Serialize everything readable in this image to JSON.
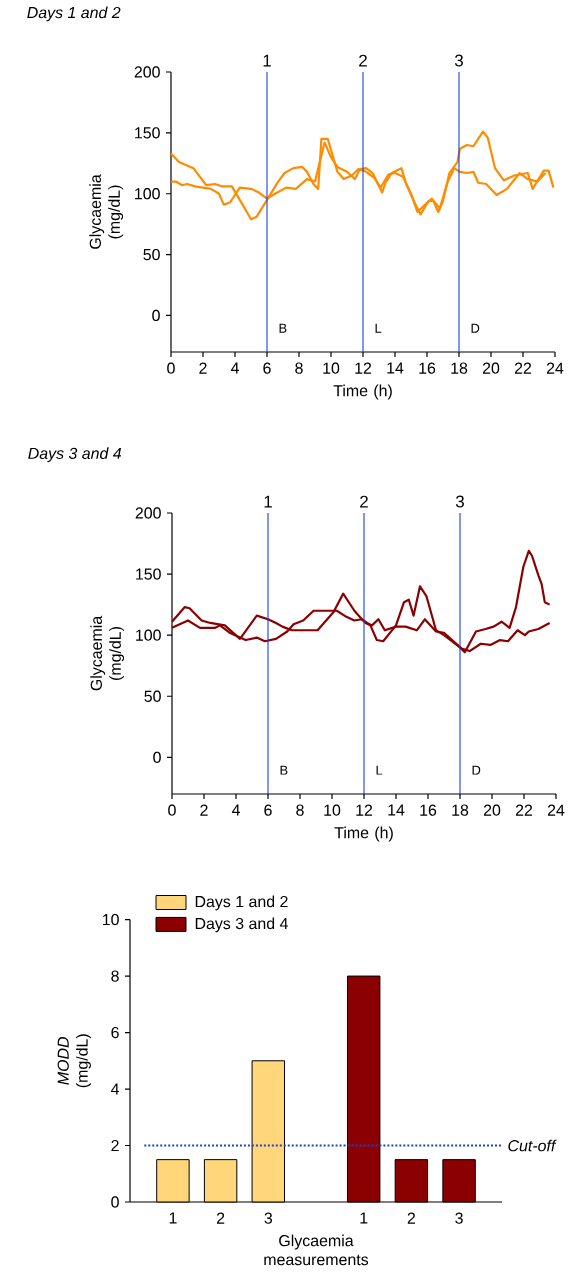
{
  "chart_data": [
    {
      "type": "line",
      "title": "Days 1 and 2",
      "xlabel": "Time (h)",
      "ylabel": "Glycaemia (mg/dL)",
      "xlim": [
        0,
        24
      ],
      "xticks": [
        0,
        2,
        4,
        6,
        8,
        10,
        12,
        14,
        16,
        18,
        20,
        22,
        24
      ],
      "ylim": [
        -30,
        200
      ],
      "yticks": [
        0,
        50,
        100,
        150,
        200
      ],
      "series": [
        {
          "color": "#ff8c00",
          "x": [
            0,
            0.5,
            1.4,
            1.8,
            2.2,
            2.75,
            3.2,
            3.8,
            4.3,
            5.0,
            5.35,
            6.0,
            6.7,
            7.1,
            7.65,
            8.2,
            8.5,
            8.9,
            9.2,
            9.4,
            9.8,
            10.4,
            10.8,
            11.3,
            11.7,
            12.2,
            12.6,
            13.2,
            13.4,
            13.8,
            14.4,
            14.7,
            15.25,
            15.6,
            16.1,
            16.4,
            16.7,
            17.0,
            17.4,
            17.9,
            18.06,
            18.5,
            18.9,
            19.5,
            19.8,
            20.25,
            20.8,
            21.45,
            22.3,
            22.6,
            23.3,
            23.6,
            23.9
          ],
          "values": [
            133,
            126,
            121,
            114,
            107,
            108,
            106,
            106,
            95,
            79,
            81,
            95,
            110,
            117,
            121,
            122,
            118,
            108,
            104,
            145,
            145,
            118,
            112,
            115,
            120,
            121,
            117,
            101,
            109,
            117,
            121,
            108,
            92,
            83,
            94,
            94,
            85,
            94,
            117,
            126,
            137,
            140,
            139,
            151,
            146,
            121,
            111,
            115,
            117,
            104,
            119,
            119,
            105
          ]
        },
        {
          "color": "#ff8c00",
          "x": [
            0,
            0.3,
            0.7,
            1.0,
            1.5,
            2.5,
            3.0,
            3.3,
            3.7,
            4.3,
            5.0,
            5.5,
            6.0,
            6.5,
            7.2,
            7.8,
            8.5,
            9.0,
            9.6,
            10.0,
            10.4,
            11.0,
            11.5,
            11.8,
            12.2,
            12.7,
            13.1,
            13.6,
            14.0,
            14.5,
            15.0,
            15.4,
            15.8,
            16.3,
            16.8,
            17.3,
            17.7,
            18.06,
            18.5,
            18.9,
            19.2,
            19.7,
            20.35,
            21.0,
            21.8,
            22.3,
            22.9,
            23.4
          ],
          "values": [
            110,
            110,
            107,
            108,
            106,
            104,
            100,
            91,
            93,
            105,
            104,
            101,
            96,
            100,
            105,
            104,
            112,
            110,
            142,
            130,
            122,
            118,
            112,
            120,
            118,
            113,
            105,
            116,
            117,
            114,
            100,
            85,
            90,
            96,
            88,
            110,
            121,
            118,
            117,
            118,
            109,
            108,
            99,
            104,
            117,
            112,
            110,
            117
          ]
        }
      ],
      "ref_lines": [
        {
          "axis": "x",
          "value": 6,
          "color": "#1a3fe0"
        },
        {
          "axis": "x",
          "value": 12,
          "color": "#1a3fe0"
        },
        {
          "axis": "x",
          "value": 18,
          "color": "#1a3fe0"
        }
      ],
      "annotations": [
        "1",
        "2",
        "3",
        "B",
        "L",
        "D"
      ]
    },
    {
      "type": "line",
      "title": "Days 3 and 4",
      "xlabel": "Time (h)",
      "ylabel": "Glycaemia (mg/dL)",
      "xlim": [
        0,
        24
      ],
      "xticks": [
        0,
        2,
        4,
        6,
        8,
        10,
        12,
        14,
        16,
        18,
        20,
        22,
        24
      ],
      "ylim": [
        -30,
        200
      ],
      "yticks": [
        0,
        50,
        100,
        150,
        200
      ],
      "series": [
        {
          "color": "#8b0000",
          "x": [
            0,
            0.8,
            1.1,
            1.85,
            2.4,
            3.3,
            4.25,
            5.3,
            6.0,
            6.5,
            6.9,
            7.5,
            8.2,
            9.1,
            10.1,
            10.7,
            11.4,
            11.8,
            12.1,
            12.4,
            12.8,
            13.2,
            14.0,
            14.5,
            14.8,
            15.1,
            15.5,
            15.9,
            16.5,
            17.0,
            18.0,
            18.3,
            19.0,
            19.6,
            20.1,
            20.6,
            21.1,
            21.5,
            21.96,
            22.3,
            22.5,
            22.9,
            23.1,
            23.3,
            23.6
          ],
          "values": [
            111,
            123,
            122,
            112,
            110,
            108,
            97,
            116,
            113,
            110,
            107,
            104,
            104,
            104,
            119,
            134,
            120,
            114,
            110,
            108,
            96,
            95,
            108,
            127,
            129,
            116,
            140,
            132,
            104,
            100,
            90,
            86,
            103,
            105,
            107,
            111,
            106,
            123,
            156,
            169,
            165,
            149,
            142,
            127,
            125
          ]
        },
        {
          "color": "#8b0000",
          "x": [
            0,
            1.0,
            1.75,
            2.7,
            3.0,
            3.6,
            4.6,
            5.3,
            5.8,
            6.5,
            7.2,
            7.6,
            8.2,
            8.85,
            9.5,
            10.3,
            10.9,
            11.4,
            11.85,
            12.2,
            12.5,
            12.9,
            13.3,
            14.0,
            14.6,
            15.3,
            15.8,
            16.5,
            17.0,
            18.1,
            18.6,
            19.3,
            19.9,
            20.5,
            21.0,
            21.6,
            22.06,
            22.3,
            22.9,
            23.6
          ],
          "values": [
            106,
            112,
            106,
            106,
            108,
            102,
            96,
            98,
            95,
            97,
            103,
            109,
            112,
            120,
            120,
            120,
            115,
            112,
            113,
            110,
            108,
            113,
            104,
            107,
            107,
            104,
            113,
            103,
            102,
            89,
            87,
            93,
            92,
            96,
            95,
            104,
            100,
            103,
            105,
            110
          ]
        }
      ],
      "ref_lines": [
        {
          "axis": "x",
          "value": 6,
          "color": "#1a3fe0"
        },
        {
          "axis": "x",
          "value": 12,
          "color": "#1a3fe0"
        },
        {
          "axis": "x",
          "value": 18,
          "color": "#1a3fe0"
        }
      ],
      "annotations": [
        "1",
        "2",
        "3",
        "B",
        "L",
        "D"
      ]
    },
    {
      "type": "bar",
      "xlabel": "Glycaemia measurements",
      "ylabel": "*MODD* (mg/dL)",
      "categories": [
        "1",
        "2",
        "3",
        null,
        "1",
        "2",
        "3"
      ],
      "ylim": [
        0,
        10
      ],
      "yticks": [
        0,
        2,
        4,
        6,
        8,
        10
      ],
      "legend": "top left",
      "series": [
        {
          "name": "Days 1 and 2",
          "color": "#ffd77a",
          "values": [
            1.5,
            1.5,
            5.0,
            null,
            null,
            null,
            null
          ]
        },
        {
          "name": "Days 3 and 4",
          "color": "#8b0000",
          "values": [
            null,
            null,
            null,
            null,
            8.0,
            1.5,
            1.5
          ]
        }
      ],
      "ref_lines": [
        {
          "axis": "y",
          "value": 2,
          "label": "Cut-off",
          "color": "#1a3fe0",
          "line_style": "dotted"
        }
      ]
    }
  ]
}
